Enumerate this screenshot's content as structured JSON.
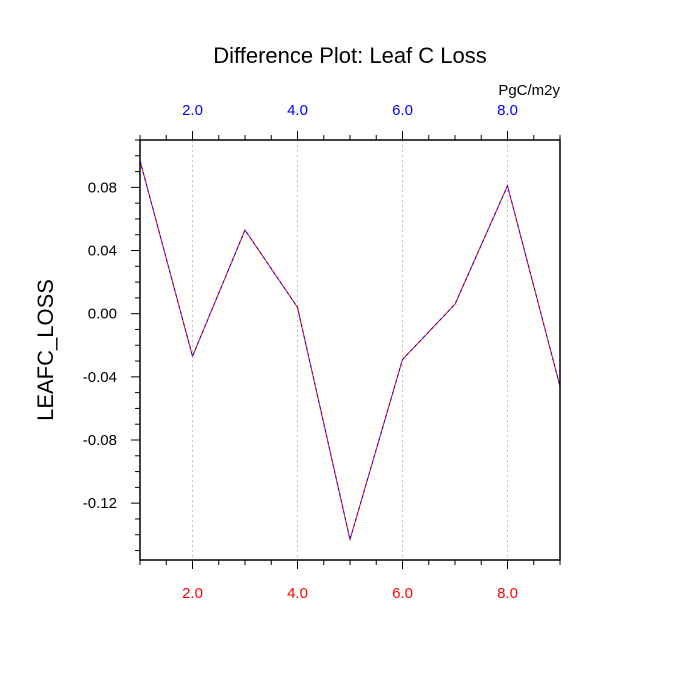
{
  "chart_data": {
    "type": "line",
    "title": "Difference Plot: Leaf C Loss",
    "units": "PgC/m2y",
    "ylabel": "LEAFC_LOSS",
    "xlim": [
      1,
      9
    ],
    "ylim": [
      -0.156,
      0.11
    ],
    "x": [
      1,
      2,
      3,
      4,
      5,
      6,
      7,
      8,
      9
    ],
    "series": [
      {
        "values": [
          0.097,
          -0.027,
          0.053,
          0.004,
          -0.143,
          -0.029,
          0.006,
          0.081,
          -0.046
        ]
      }
    ],
    "x_ticks": [
      {
        "value": 2,
        "label": "2.0"
      },
      {
        "value": 4,
        "label": "4.0"
      },
      {
        "value": 6,
        "label": "6.0"
      },
      {
        "value": 8,
        "label": "8.0"
      }
    ],
    "y_ticks": [
      {
        "value": 0.08,
        "label": "0.08"
      },
      {
        "value": 0.04,
        "label": "0.04"
      },
      {
        "value": 0.0,
        "label": "0.00"
      },
      {
        "value": -0.04,
        "label": "-0.04"
      },
      {
        "value": -0.08,
        "label": "-0.08"
      },
      {
        "value": -0.12,
        "label": "-0.12"
      }
    ],
    "grid": "vertical dashed at major x ticks",
    "colors": {
      "line_dash_a": "#0000ff",
      "line_dash_b": "#ff0000",
      "top_axis_labels": "#0000ff",
      "bottom_axis_labels": "#ff0000",
      "left_axis_labels": "#000000",
      "grid": "#b0b0b0"
    }
  }
}
